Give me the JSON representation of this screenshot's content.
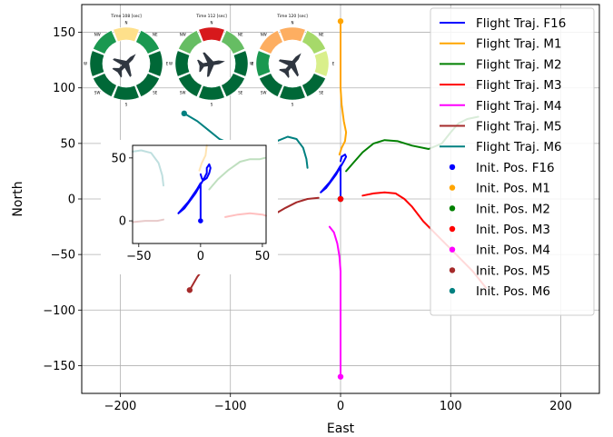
{
  "chart_data": {
    "type": "line",
    "xlabel": "East",
    "ylabel": "North",
    "xlim": [
      -235,
      235
    ],
    "ylim": [
      -175,
      175
    ],
    "xticks": [
      -200,
      -100,
      0,
      100,
      200
    ],
    "xtick_labels": [
      "−200",
      "−100",
      "0",
      "100",
      "200"
    ],
    "yticks": [
      -150,
      -100,
      -50,
      0,
      50,
      100,
      150
    ],
    "ytick_labels": [
      "−150",
      "−100",
      "−50",
      "0",
      "50",
      "100",
      "150"
    ],
    "grid": true,
    "legend_position": "top-right",
    "series": [
      {
        "name": "Flight Traj. F16",
        "color": "#0000ff",
        "points": [
          [
            0,
            0
          ],
          [
            0,
            5
          ],
          [
            0,
            10
          ],
          [
            0,
            15
          ],
          [
            0,
            20
          ],
          [
            0,
            25
          ],
          [
            0,
            30
          ],
          [
            -3,
            25
          ],
          [
            -10,
            15
          ],
          [
            -18,
            6
          ],
          [
            -13,
            10
          ],
          [
            -4,
            22
          ],
          [
            3,
            34
          ],
          [
            5,
            38
          ],
          [
            4,
            40
          ],
          [
            1,
            38
          ],
          [
            0,
            34
          ]
        ]
      },
      {
        "name": "Flight Traj. M1",
        "color": "#ffa500",
        "points": [
          [
            0,
            160
          ],
          [
            0,
            140
          ],
          [
            0,
            120
          ],
          [
            0,
            100
          ],
          [
            1,
            85
          ],
          [
            3,
            70
          ],
          [
            5,
            60
          ],
          [
            4,
            52
          ],
          [
            1,
            46
          ],
          [
            -1,
            40
          ]
        ]
      },
      {
        "name": "Flight Traj. M2",
        "color": "#008000",
        "points": [
          [
            5,
            25
          ],
          [
            12,
            33
          ],
          [
            20,
            42
          ],
          [
            30,
            50
          ],
          [
            40,
            53
          ],
          [
            52,
            52
          ],
          [
            65,
            48
          ],
          [
            80,
            45
          ],
          [
            92,
            50
          ],
          [
            100,
            60
          ],
          [
            107,
            68
          ],
          [
            115,
            72
          ],
          [
            125,
            74
          ]
        ]
      },
      {
        "name": "Flight Traj. M3",
        "color": "#ff0000",
        "points": [
          [
            20,
            3
          ],
          [
            30,
            5
          ],
          [
            40,
            6
          ],
          [
            50,
            5
          ],
          [
            58,
            0
          ],
          [
            65,
            -7
          ],
          [
            75,
            -20
          ],
          [
            90,
            -35
          ],
          [
            105,
            -50
          ],
          [
            120,
            -65
          ],
          [
            132,
            -80
          ]
        ]
      },
      {
        "name": "Flight Traj. M4",
        "color": "#ff00ff",
        "points": [
          [
            0,
            -160
          ],
          [
            0,
            -140
          ],
          [
            0,
            -120
          ],
          [
            0,
            -100
          ],
          [
            0,
            -80
          ],
          [
            0,
            -65
          ],
          [
            -1,
            -52
          ],
          [
            -3,
            -40
          ],
          [
            -6,
            -30
          ],
          [
            -10,
            -25
          ]
        ]
      },
      {
        "name": "Flight Traj. M5",
        "color": "#a52a2a",
        "points": [
          [
            -137,
            -82
          ],
          [
            -130,
            -70
          ],
          [
            -122,
            -60
          ],
          [
            -112,
            -50
          ],
          [
            -100,
            -40
          ],
          [
            -88,
            -30
          ],
          [
            -75,
            -22
          ],
          [
            -62,
            -15
          ],
          [
            -50,
            -8
          ],
          [
            -40,
            -3
          ],
          [
            -30,
            0
          ],
          [
            -20,
            1
          ]
        ]
      },
      {
        "name": "Flight Traj. M6",
        "color": "#008080",
        "points": [
          [
            -142,
            77
          ],
          [
            -130,
            70
          ],
          [
            -120,
            62
          ],
          [
            -110,
            54
          ],
          [
            -100,
            50
          ],
          [
            -85,
            48
          ],
          [
            -70,
            48
          ],
          [
            -58,
            52
          ],
          [
            -48,
            56
          ],
          [
            -40,
            54
          ],
          [
            -34,
            46
          ],
          [
            -31,
            36
          ],
          [
            -30,
            28
          ]
        ]
      }
    ],
    "initial_positions": [
      {
        "name": "Init. Pos. F16",
        "color": "#0000ff",
        "x": 0,
        "y": 0
      },
      {
        "name": "Init. Pos. M1",
        "color": "#ffa500",
        "x": 0,
        "y": 160
      },
      {
        "name": "Init. Pos. M2",
        "color": "#008000",
        "x": 0,
        "y": 0
      },
      {
        "name": "Init. Pos. M3",
        "color": "#ff0000",
        "x": 0,
        "y": 0
      },
      {
        "name": "Init. Pos. M4",
        "color": "#ff00ff",
        "x": 0,
        "y": -160
      },
      {
        "name": "Init. Pos. M5",
        "color": "#a52a2a",
        "x": -137,
        "y": -82
      },
      {
        "name": "Init. Pos. M6",
        "color": "#008080",
        "x": -142,
        "y": 77
      }
    ],
    "inset": {
      "xlim": [
        -55,
        53
      ],
      "ylim": [
        -18,
        60
      ],
      "xticks": [
        -50,
        0,
        50
      ],
      "xtick_labels": [
        "−50",
        "0",
        "50"
      ],
      "yticks": [
        0,
        50
      ],
      "ytick_labels": [
        "0",
        "50"
      ],
      "series": [
        {
          "name": "F16",
          "color": "#0000ff",
          "alpha": 1,
          "points": [
            [
              0,
              0
            ],
            [
              0,
              5
            ],
            [
              0,
              10
            ],
            [
              0,
              15
            ],
            [
              0,
              20
            ],
            [
              0,
              25
            ],
            [
              0,
              30
            ],
            [
              -3,
              25
            ],
            [
              -10,
              15
            ],
            [
              -18,
              6
            ],
            [
              -13,
              10
            ],
            [
              -4,
              22
            ],
            [
              3,
              34
            ],
            [
              5,
              38
            ],
            [
              5,
              42
            ],
            [
              7,
              45
            ],
            [
              8,
              42
            ],
            [
              7,
              38
            ],
            [
              5,
              34
            ],
            [
              2,
              32
            ],
            [
              1,
              34
            ],
            [
              0,
              37
            ]
          ]
        },
        {
          "name": "M1",
          "color": "#ffa500",
          "alpha": 0.3,
          "points": [
            [
              5,
              60
            ],
            [
              4,
              52
            ],
            [
              1,
              46
            ],
            [
              -1,
              40
            ]
          ]
        },
        {
          "name": "M2",
          "color": "#008000",
          "alpha": 0.25,
          "points": [
            [
              7,
              25
            ],
            [
              14,
              33
            ],
            [
              22,
              40
            ],
            [
              32,
              47
            ],
            [
              40,
              49
            ],
            [
              48,
              49
            ],
            [
              52,
              50
            ]
          ]
        },
        {
          "name": "M3",
          "color": "#ff0000",
          "alpha": 0.25,
          "points": [
            [
              20,
              3
            ],
            [
              30,
              5
            ],
            [
              40,
              6
            ],
            [
              50,
              5
            ],
            [
              53,
              4
            ]
          ]
        },
        {
          "name": "M5",
          "color": "#a52a2a",
          "alpha": 0.25,
          "points": [
            [
              -55,
              -1
            ],
            [
              -45,
              0
            ],
            [
              -35,
              0
            ],
            [
              -30,
              1
            ]
          ]
        },
        {
          "name": "M6",
          "color": "#008080",
          "alpha": 0.25,
          "points": [
            [
              -55,
              55
            ],
            [
              -48,
              56
            ],
            [
              -40,
              54
            ],
            [
              -34,
              46
            ],
            [
              -31,
              36
            ],
            [
              -30,
              28
            ]
          ]
        }
      ],
      "markers": [
        {
          "color": "#0000ff",
          "x": 0,
          "y": 0
        }
      ]
    },
    "gauges": [
      {
        "title": "Time 108 [sec]",
        "directions": [
          "N",
          "NE",
          "E",
          "SE",
          "S",
          "SW",
          "W",
          "NW"
        ],
        "colors": [
          "#fee08b",
          "#1a9850",
          "#006837",
          "#006837",
          "#006837",
          "#006837",
          "#006837",
          "#1a9850"
        ]
      },
      {
        "title": "Time 112 [sec]",
        "directions": [
          "N",
          "NE",
          "E",
          "SE",
          "S",
          "SW",
          "W",
          "NW"
        ],
        "colors": [
          "#d7191c",
          "#66bd63",
          "#006837",
          "#006837",
          "#006837",
          "#006837",
          "#006837",
          "#66bd63"
        ]
      },
      {
        "title": "Time 120 [sec]",
        "directions": [
          "N",
          "NE",
          "E",
          "SE",
          "S",
          "SW",
          "W",
          "NW"
        ],
        "colors": [
          "#fdae61",
          "#a6d96a",
          "#d9ef8b",
          "#006837",
          "#006837",
          "#006837",
          "#1a9850",
          "#fdae61"
        ]
      }
    ]
  }
}
